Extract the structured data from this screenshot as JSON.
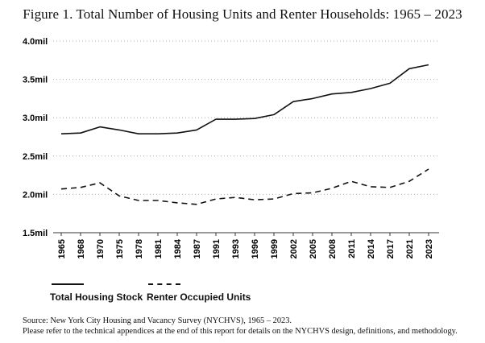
{
  "chart_data": {
    "type": "line",
    "title": "Figure 1. Total Number of Housing Units and Renter Households: 1965 – 2023",
    "x": [
      "1965",
      "1968",
      "1970",
      "1975",
      "1978",
      "1981",
      "1984",
      "1987",
      "1991",
      "1993",
      "1996",
      "1999",
      "2002",
      "2005",
      "2008",
      "2011",
      "2014",
      "2017",
      "2021",
      "2023"
    ],
    "y_ticks": [
      "1.5mil",
      "2.0mil",
      "2.5mil",
      "3.0mil",
      "3.5mil",
      "4.0mil"
    ],
    "ylim": [
      1.5,
      4.0
    ],
    "grid": "horizontal dotted",
    "legend_position": "bottom-left",
    "series": [
      {
        "name": "Total Housing Stock",
        "style": "solid",
        "values": [
          2.79,
          2.8,
          2.88,
          2.84,
          2.79,
          2.79,
          2.8,
          2.84,
          2.98,
          2.98,
          2.99,
          3.04,
          3.21,
          3.25,
          3.31,
          3.33,
          3.38,
          3.45,
          3.64,
          3.69
        ]
      },
      {
        "name": "Renter Occupied Units",
        "style": "dashed",
        "values": [
          2.07,
          2.09,
          2.15,
          1.98,
          1.92,
          1.92,
          1.89,
          1.87,
          1.94,
          1.96,
          1.93,
          1.94,
          2.01,
          2.02,
          2.08,
          2.17,
          2.1,
          2.09,
          2.17,
          2.33
        ]
      }
    ],
    "color": "#111111"
  },
  "source": {
    "line1": "Source: New York City Housing and Vacancy Survey (NYCHVS), 1965 – 2023.",
    "line2": "Please refer to the technical appendices at the end of this report for details on the NYCHVS design, definitions, and methodology."
  }
}
